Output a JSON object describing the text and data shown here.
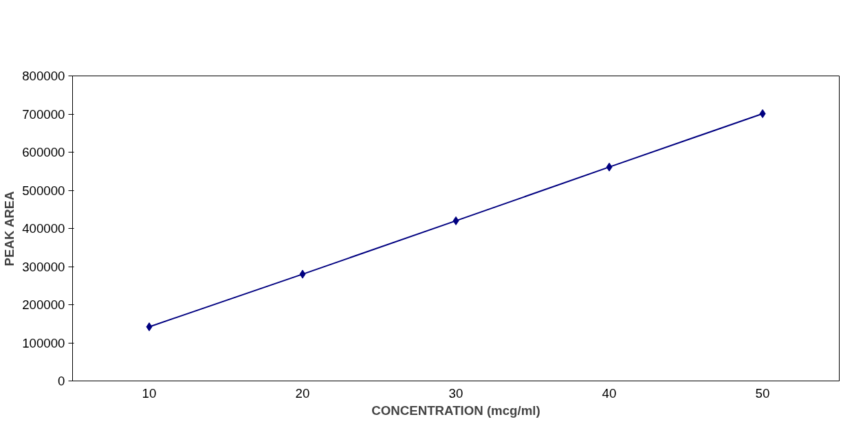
{
  "chart_data": {
    "type": "line",
    "xlabel": "CONCENTRATION (mcg/ml)",
    "ylabel": "PEAK AREA",
    "categories": [
      "10",
      "20",
      "30",
      "40",
      "50"
    ],
    "series": [
      {
        "color": "#000080",
        "values": [
          142000,
          280000,
          420000,
          561000,
          701000
        ]
      }
    ],
    "ylim": [
      0,
      800000
    ],
    "yticks": [
      0,
      100000,
      200000,
      300000,
      400000,
      500000,
      600000,
      700000,
      800000
    ],
    "grid": false,
    "marker": "diamond",
    "line_style": "solid"
  }
}
